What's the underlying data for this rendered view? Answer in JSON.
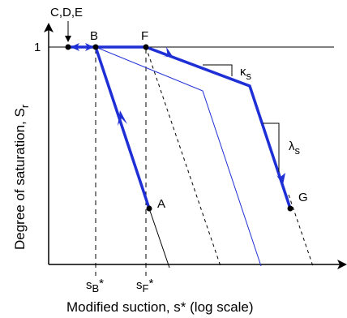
{
  "axes": {
    "x_title": "Modified suction, s* (log scale)",
    "y_title": "Degree of saturation, S",
    "y_title_subscript": "r",
    "y_tick_label": "1",
    "x_tick_sB": "s",
    "x_tick_sB_sub": "B",
    "x_tick_sF": "s",
    "x_tick_sF_sub": "F",
    "star": "*"
  },
  "points": {
    "cde": "C,D,E",
    "b": "B",
    "f": "F",
    "a": "A",
    "g": "G"
  },
  "slopes": {
    "kappa": "κ",
    "kappa_sub": "s",
    "lambda": "λ",
    "lambda_sub": "s"
  },
  "colors": {
    "path": "#1f2fd6",
    "thin_line": "#1f2fd6",
    "axis": "#000000"
  }
}
